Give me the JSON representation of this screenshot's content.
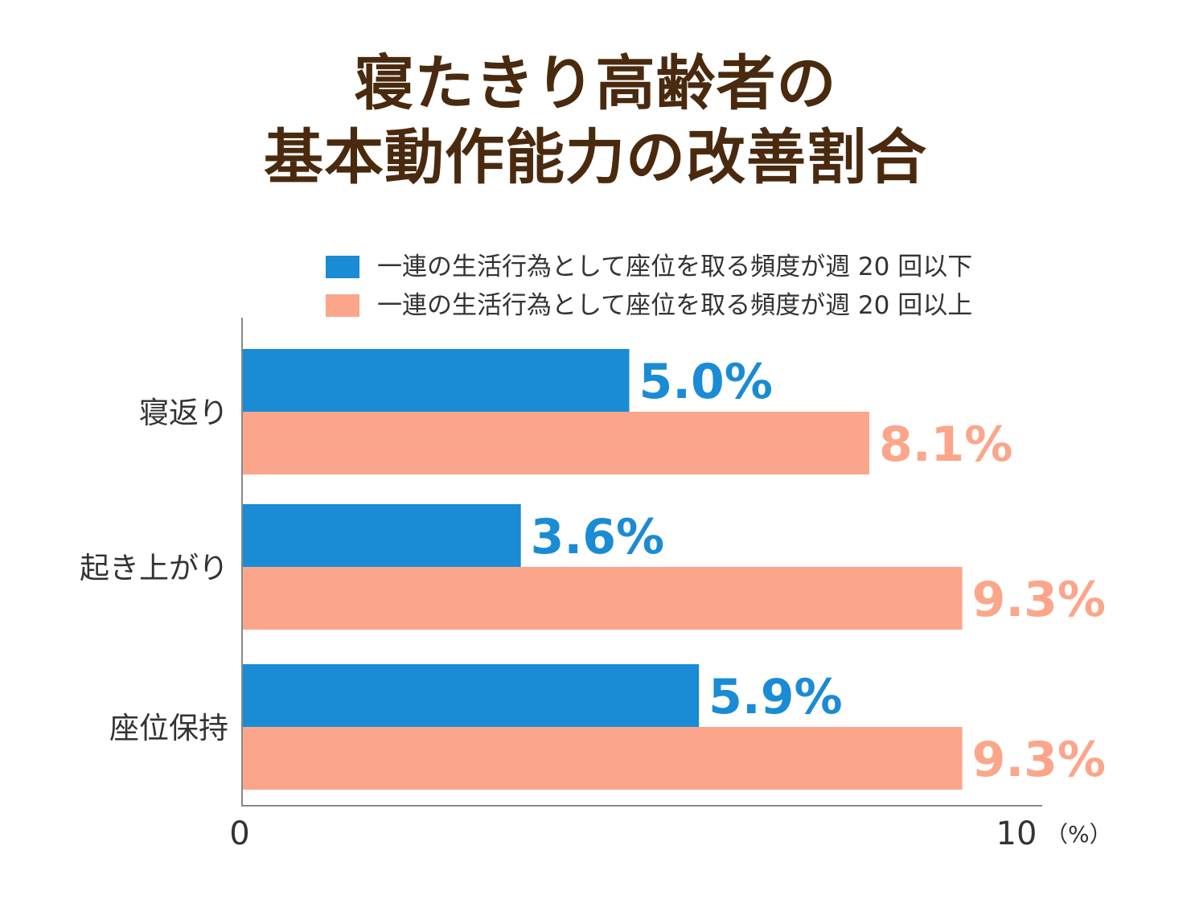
{
  "title": {
    "line1": "寝たきり高齢者の",
    "line2": "基本動作能力の改善割合"
  },
  "colors": {
    "series1": "#1a8bd5",
    "series2": "#fba68a",
    "title": "#4a2a0e",
    "axis": "#888888"
  },
  "chart_data": {
    "type": "bar",
    "orientation": "horizontal",
    "categories": [
      "寝返り",
      "起き上がり",
      "座位保持"
    ],
    "series": [
      {
        "name": "一連の生活行為として座位を取る頻度が週 20 回以下",
        "values": [
          5.0,
          3.6,
          5.9
        ]
      },
      {
        "name": "一連の生活行為として座位を取る頻度が週 20 回以上",
        "values": [
          8.1,
          9.3,
          9.3
        ]
      }
    ],
    "value_labels": [
      [
        "5.0%",
        "3.6%",
        "5.9%"
      ],
      [
        "8.1%",
        "9.3%",
        "9.3%"
      ]
    ],
    "xlim": [
      0,
      10
    ],
    "x_ticks": [
      "0",
      "10"
    ],
    "unit": "（%）",
    "legend_position": "top-right",
    "grid": false
  }
}
